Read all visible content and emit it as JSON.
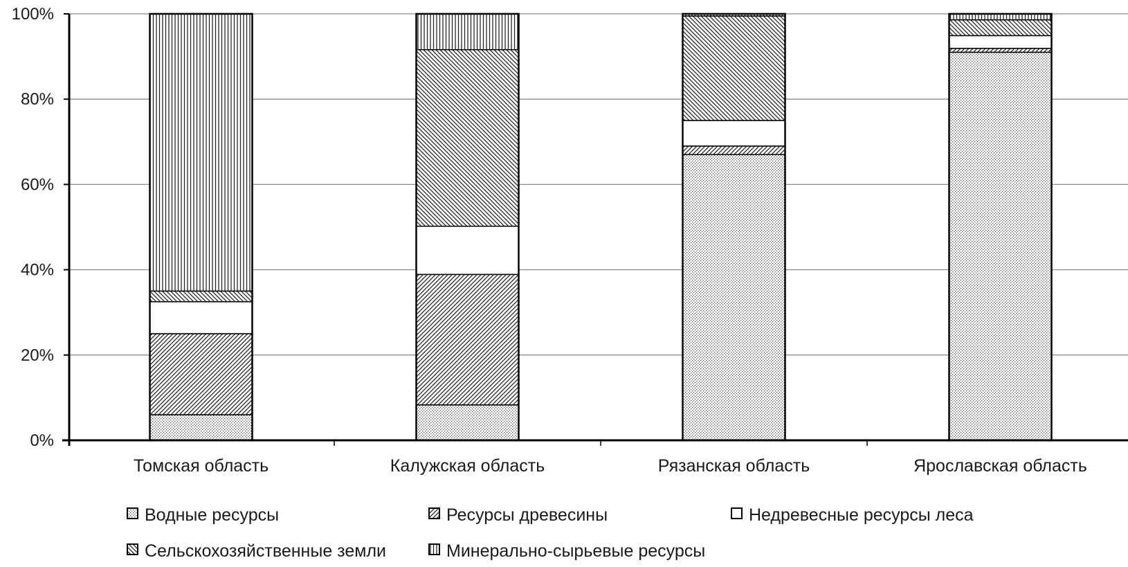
{
  "chart_data": {
    "type": "bar",
    "stacked": "percent",
    "categories": [
      "Томская область",
      "Калужская область",
      "Рязанская область",
      "Ярославская область"
    ],
    "series": [
      {
        "name": "Водные ресурсы",
        "pattern": "dots",
        "values": [
          6,
          8.3,
          67,
          91
        ]
      },
      {
        "name": "Ресурсы древесины",
        "pattern": "diag-fwd",
        "values": [
          19,
          30.6,
          2,
          0.9
        ]
      },
      {
        "name": "Недревесные ресурсы леса",
        "pattern": "none",
        "values": [
          7.5,
          11.3,
          6,
          3
        ]
      },
      {
        "name": "Сельскохозяйственные земли",
        "pattern": "diag-back",
        "values": [
          2.5,
          41.4,
          24.5,
          3.7
        ]
      },
      {
        "name": "Минерально-сырьевые ресурсы",
        "pattern": "vert",
        "values": [
          65,
          8.4,
          0.5,
          1.4
        ]
      }
    ],
    "yticks": [
      "0%",
      "20%",
      "40%",
      "60%",
      "80%",
      "100%"
    ],
    "ylim": [
      0,
      100
    ],
    "grid": true,
    "legend_position": "bottom",
    "title": "",
    "xlabel": "",
    "ylabel": ""
  }
}
